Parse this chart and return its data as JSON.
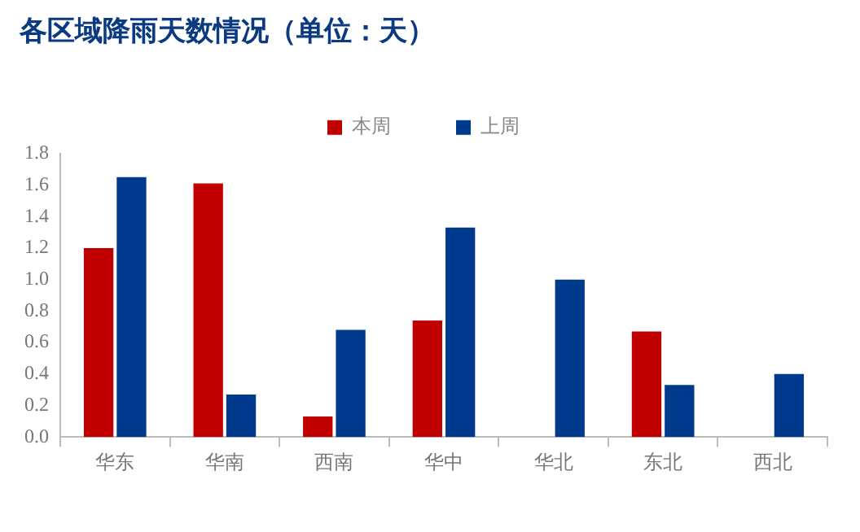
{
  "chart_data": {
    "type": "bar",
    "title": "各区域降雨天数情况（单位：天）",
    "categories": [
      "华东",
      "华南",
      "西南",
      "华中",
      "华北",
      "东北",
      "西北"
    ],
    "series": [
      {
        "name": "本周",
        "color": "#c00000",
        "values": [
          1.2,
          1.61,
          0.13,
          0.74,
          0,
          0.67,
          0
        ]
      },
      {
        "name": "上周",
        "color": "#003a8c",
        "values": [
          1.65,
          0.27,
          0.68,
          1.33,
          1.0,
          0.33,
          0.4
        ]
      }
    ],
    "ylim": [
      0,
      1.8
    ],
    "yticks": [
      {
        "value": 0,
        "label": "0.0"
      },
      {
        "value": 0.2,
        "label": "0.2"
      },
      {
        "value": 0.4,
        "label": "0.4"
      },
      {
        "value": 0.6,
        "label": "0.6"
      },
      {
        "value": 0.8,
        "label": "0.8"
      },
      {
        "value": 1.0,
        "label": "1.0"
      },
      {
        "value": 1.2,
        "label": "1.2"
      },
      {
        "value": 1.4,
        "label": "1.4"
      },
      {
        "value": 1.6,
        "label": "1.6"
      },
      {
        "value": 1.8,
        "label": "1.8"
      }
    ],
    "grid": false,
    "legend": "top"
  }
}
